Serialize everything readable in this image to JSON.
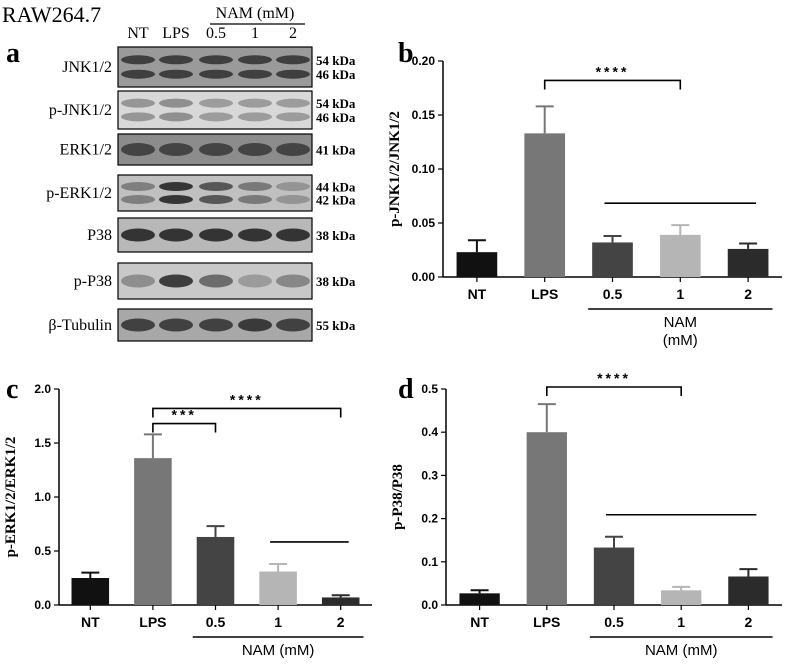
{
  "figure": {
    "cell_line": "RAW264.7",
    "panel_labels": [
      "a",
      "b",
      "c",
      "d"
    ]
  },
  "blot": {
    "lanes": [
      "NT",
      "LPS",
      "0.5",
      "1",
      "2"
    ],
    "nam_header": "NAM (mM)",
    "rows": [
      {
        "label": "JNK1/2",
        "kda": [
          "54 kDa",
          "46 kDa"
        ],
        "bands": 2,
        "intensity": [
          0.85,
          0.85,
          0.85,
          0.85,
          0.85
        ],
        "bg": "#9a9a9a"
      },
      {
        "label": "p-JNK1/2",
        "kda": [
          "54 kDa",
          "46 kDa"
        ],
        "bands": 2,
        "intensity": [
          0.25,
          0.3,
          0.2,
          0.2,
          0.2
        ],
        "bg": "#d8d8d8"
      },
      {
        "label": "ERK1/2",
        "kda": [
          "41 kDa"
        ],
        "bands": 1,
        "intensity": [
          0.8,
          0.8,
          0.8,
          0.8,
          0.8
        ],
        "bg": "#8c8c8c"
      },
      {
        "label": "p-ERK1/2",
        "kda": [
          "44 kDa",
          "42 kDa"
        ],
        "bands": 2,
        "intensity": [
          0.4,
          0.95,
          0.7,
          0.45,
          0.25
        ],
        "bg": "#c0c0c0"
      },
      {
        "label": "P38",
        "kda": [
          "38 kDa"
        ],
        "bands": 1,
        "intensity": [
          0.95,
          0.95,
          0.95,
          0.95,
          0.95
        ],
        "bg": "#b8b8b8"
      },
      {
        "label": "p-P38",
        "kda": [
          "38 kDa"
        ],
        "bands": 1,
        "intensity": [
          0.3,
          0.9,
          0.55,
          0.2,
          0.35
        ],
        "bg": "#c8c8c8"
      },
      {
        "label": "β-Tubulin",
        "kda": [
          "55 kDa"
        ],
        "bands": 1,
        "intensity": [
          0.85,
          0.85,
          0.85,
          0.9,
          0.85
        ],
        "bg": "#a8a8a8"
      }
    ]
  },
  "chart_data": [
    {
      "panel": "b",
      "type": "bar",
      "categories": [
        "NT",
        "LPS",
        "0.5",
        "1",
        "2"
      ],
      "values": [
        0.023,
        0.133,
        0.032,
        0.039,
        0.026
      ],
      "errors": [
        0.011,
        0.025,
        0.006,
        0.009,
        0.005
      ],
      "colors": [
        "#111111",
        "#777777",
        "#444444",
        "#b5b5b5",
        "#2b2b2b"
      ],
      "ylabel": "p-JNK1/2/JNK1/2",
      "xlabel": "NAM\n(mM)",
      "xlabel_lines": [
        "NAM",
        "(mM)"
      ],
      "ylim": [
        0,
        0.2
      ],
      "yticks": [
        "0.00",
        "0.05",
        "0.10",
        "0.15",
        "0.20"
      ],
      "significance": [
        {
          "from": 1,
          "to": 3,
          "label": "****",
          "line_only": false
        },
        {
          "from": 2,
          "to": 4,
          "label": "",
          "line_only": true
        }
      ]
    },
    {
      "panel": "c",
      "type": "bar",
      "categories": [
        "NT",
        "LPS",
        "0.5",
        "1",
        "2"
      ],
      "values": [
        0.25,
        1.36,
        0.63,
        0.31,
        0.07
      ],
      "errors": [
        0.05,
        0.22,
        0.1,
        0.07,
        0.02
      ],
      "colors": [
        "#111111",
        "#777777",
        "#444444",
        "#b5b5b5",
        "#2b2b2b"
      ],
      "ylabel": "p-ERK1/2/ERK1/2",
      "xlabel": "NAM (mM)",
      "xlabel_lines": [
        "NAM (mM)"
      ],
      "ylim": [
        0,
        2.0
      ],
      "yticks": [
        "0.0",
        "0.5",
        "1.0",
        "1.5",
        "2.0"
      ],
      "significance": [
        {
          "from": 1,
          "to": 4,
          "label": "****",
          "line_only": false
        },
        {
          "from": 1,
          "to": 2,
          "label": "***",
          "line_only": false
        },
        {
          "from": 3,
          "to": 4,
          "label": "",
          "line_only": true
        }
      ]
    },
    {
      "panel": "d",
      "type": "bar",
      "categories": [
        "NT",
        "LPS",
        "0.5",
        "1",
        "2"
      ],
      "values": [
        0.027,
        0.4,
        0.133,
        0.034,
        0.066
      ],
      "errors": [
        0.007,
        0.065,
        0.025,
        0.008,
        0.017
      ],
      "colors": [
        "#111111",
        "#777777",
        "#444444",
        "#b5b5b5",
        "#2b2b2b"
      ],
      "ylabel": "p-P38/P38",
      "xlabel": "NAM (mM)",
      "xlabel_lines": [
        "NAM (mM)"
      ],
      "ylim": [
        0,
        0.5
      ],
      "yticks": [
        "0.0",
        "0.1",
        "0.2",
        "0.3",
        "0.4",
        "0.5"
      ],
      "significance": [
        {
          "from": 1,
          "to": 3,
          "label": "****",
          "line_only": false
        },
        {
          "from": 2,
          "to": 4,
          "label": "",
          "line_only": true
        }
      ]
    }
  ]
}
